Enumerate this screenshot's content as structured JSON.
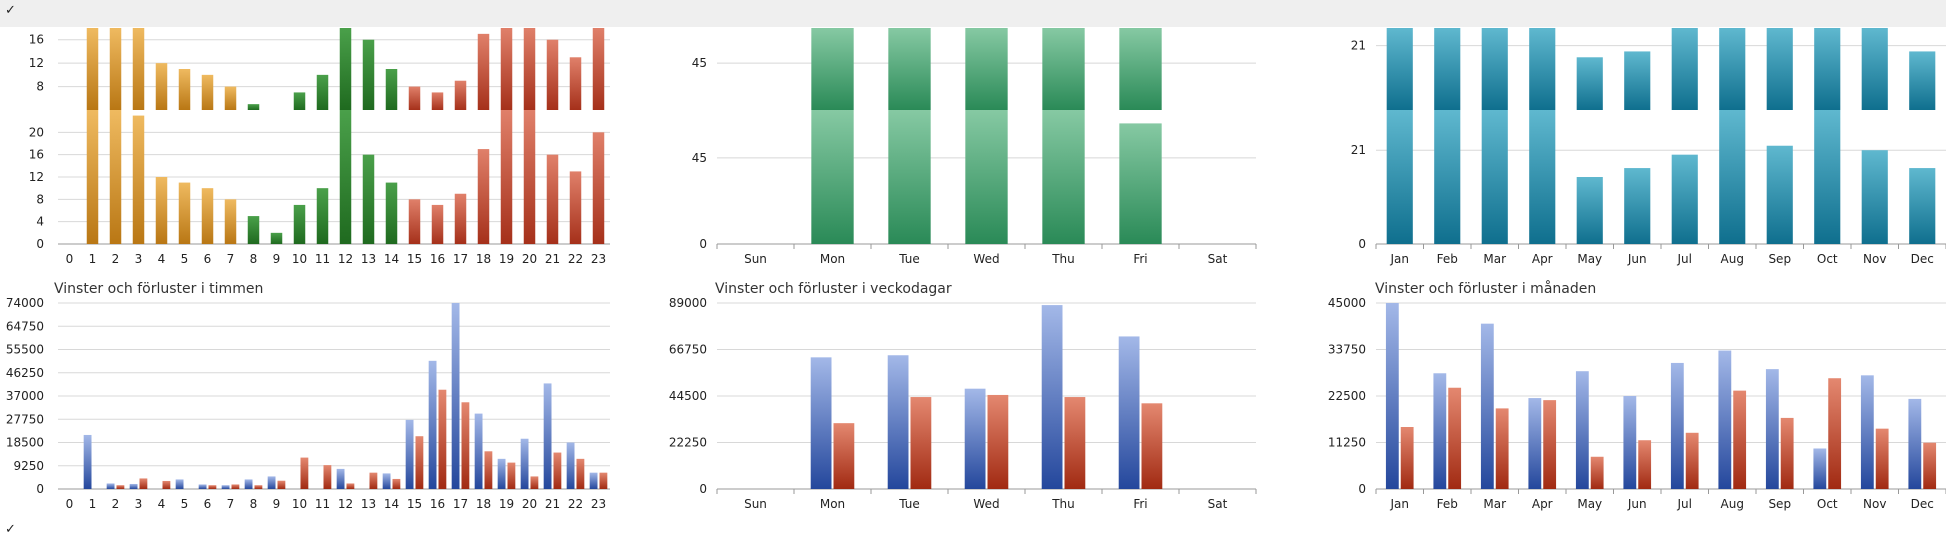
{
  "toolbar": {
    "check_top": "✓",
    "check_bottom": "✓"
  },
  "chart_data": [
    {
      "type": "bar",
      "id": "hour-stack",
      "title": "",
      "x": [
        "0",
        "1",
        "2",
        "3",
        "4",
        "5",
        "6",
        "7",
        "8",
        "9",
        "10",
        "11",
        "12",
        "13",
        "14",
        "15",
        "16",
        "17",
        "18",
        "19",
        "20",
        "21",
        "22",
        "23"
      ],
      "upper_y_ticks": [
        "8",
        "12",
        "16"
      ],
      "lower_y_ticks": [
        "0",
        "4",
        "8",
        "12",
        "16",
        "20"
      ],
      "upper_ylim": [
        4,
        18
      ],
      "lower_ylim": [
        0,
        24
      ],
      "upper_values": [
        0,
        18,
        18,
        18,
        12,
        11,
        10,
        8,
        5,
        2,
        7,
        10,
        18,
        16,
        11,
        8,
        7,
        9,
        17,
        18,
        18,
        16,
        13,
        18
      ],
      "lower_values": [
        0,
        24,
        24,
        23,
        12,
        11,
        10,
        8,
        5,
        2,
        7,
        10,
        24,
        16,
        11,
        8,
        7,
        9,
        17,
        24,
        24,
        16,
        13,
        20
      ],
      "bar_colors": [
        "#c98a24",
        "#c98a24",
        "#c98a24",
        "#c98a24",
        "#c98a24",
        "#c98a24",
        "#c98a24",
        "#c98a24",
        "#2d7f2d",
        "#2d7f2d",
        "#2d7f2d",
        "#2d7f2d",
        "#2d7f2d",
        "#2d7f2d",
        "#2d7f2d",
        "#b5442c",
        "#b5442c",
        "#b5442c",
        "#b5442c",
        "#b5442c",
        "#b5442c",
        "#b5442c",
        "#b5442c",
        "#b5442c"
      ]
    },
    {
      "type": "bar",
      "id": "weekday-stack",
      "title": "",
      "x": [
        "Sun",
        "Mon",
        "Tue",
        "Wed",
        "Thu",
        "Fri",
        "Sat"
      ],
      "upper_y_ticks": [
        "45"
      ],
      "lower_y_ticks": [
        "0",
        "45"
      ],
      "upper_ylim": [
        25,
        60
      ],
      "lower_ylim": [
        0,
        70
      ],
      "upper_values": [
        0,
        60,
        60,
        60,
        60,
        60,
        0
      ],
      "lower_values": [
        0,
        70,
        70,
        70,
        70,
        63,
        0
      ],
      "color": "#3b9a67"
    },
    {
      "type": "bar",
      "id": "month-stack",
      "title": "",
      "x": [
        "Jan",
        "Feb",
        "Mar",
        "Apr",
        "May",
        "Jun",
        "Jul",
        "Aug",
        "Sep",
        "Oct",
        "Nov",
        "Dec"
      ],
      "upper_y_ticks": [
        "21"
      ],
      "lower_y_ticks": [
        "0",
        "21"
      ],
      "upper_ylim": [
        10,
        24
      ],
      "lower_ylim": [
        0,
        30
      ],
      "upper_values": [
        24,
        24,
        24,
        24,
        19,
        20,
        24,
        24,
        24,
        24,
        24,
        20
      ],
      "lower_values": [
        30,
        30,
        30,
        30,
        15,
        17,
        20,
        30,
        22,
        30,
        21,
        17
      ],
      "color": "#1f8aa6"
    },
    {
      "type": "bar",
      "id": "hour-wins-losses",
      "title": "Vinster och förluster i timmen",
      "x": [
        "0",
        "1",
        "2",
        "3",
        "4",
        "5",
        "6",
        "7",
        "8",
        "9",
        "10",
        "11",
        "12",
        "13",
        "14",
        "15",
        "16",
        "17",
        "18",
        "19",
        "20",
        "21",
        "22",
        "23"
      ],
      "y_ticks": [
        "0",
        "9250",
        "18500",
        "27750",
        "37000",
        "46250",
        "55500",
        "64750",
        "74000"
      ],
      "ylim": [
        0,
        74000
      ],
      "series": [
        {
          "name": "",
          "color": "#2d4fa1",
          "values": [
            0,
            21500,
            2200,
            2000,
            0,
            3800,
            1800,
            1500,
            3800,
            5000,
            0,
            0,
            8000,
            0,
            6200,
            27500,
            51000,
            74000,
            30000,
            12000,
            20000,
            42000,
            18500,
            6500
          ]
        },
        {
          "name": "",
          "color": "#b5331c",
          "values": [
            0,
            0,
            1500,
            4200,
            3200,
            0,
            1500,
            1800,
            1500,
            3300,
            12500,
            9500,
            2200,
            6500,
            4000,
            21000,
            39500,
            34500,
            15000,
            10500,
            5000,
            14500,
            12000,
            6500
          ]
        }
      ]
    },
    {
      "type": "bar",
      "id": "weekday-wins-losses",
      "title": "Vinster och förluster i veckodagar",
      "x": [
        "Sun",
        "Mon",
        "Tue",
        "Wed",
        "Thu",
        "Fri",
        "Sat"
      ],
      "y_ticks": [
        "0",
        "22250",
        "44500",
        "66750",
        "89000"
      ],
      "ylim": [
        0,
        89000
      ],
      "series": [
        {
          "name": "",
          "color": "#2d4fa1",
          "values": [
            0,
            63000,
            64000,
            48000,
            88000,
            73000,
            0
          ]
        },
        {
          "name": "",
          "color": "#b5331c",
          "values": [
            0,
            31500,
            44000,
            45000,
            44000,
            41000,
            0
          ]
        }
      ]
    },
    {
      "type": "bar",
      "id": "month-wins-losses",
      "title": "Vinster och förluster i månaden",
      "x": [
        "Jan",
        "Feb",
        "Mar",
        "Apr",
        "May",
        "Jun",
        "Jul",
        "Aug",
        "Sep",
        "Oct",
        "Nov",
        "Dec"
      ],
      "y_ticks": [
        "0",
        "11250",
        "22500",
        "33750",
        "45000"
      ],
      "ylim": [
        0,
        45000
      ],
      "series": [
        {
          "name": "",
          "color": "#2d4fa1",
          "values": [
            45000,
            28000,
            40000,
            22000,
            28500,
            22500,
            30500,
            33500,
            29000,
            9800,
            27500,
            21800
          ]
        },
        {
          "name": "",
          "color": "#b5331c",
          "values": [
            15000,
            24500,
            19500,
            21500,
            7800,
            11800,
            13600,
            23800,
            17200,
            26800,
            14600,
            11200
          ]
        }
      ]
    }
  ]
}
